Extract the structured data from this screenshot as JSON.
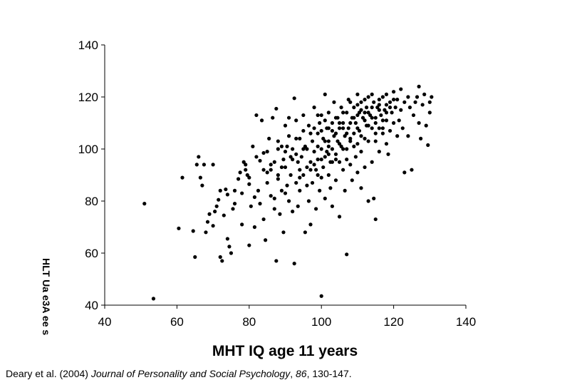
{
  "chart_data": {
    "type": "scatter",
    "title": "",
    "xlabel": "MHT IQ age 11 years",
    "ylabel_garbled": "HLT Ua e3A ee s",
    "xlim": [
      40,
      140
    ],
    "ylim": [
      40,
      140
    ],
    "x_ticks": [
      "40",
      "60",
      "80",
      "100",
      "120",
      "140"
    ],
    "y_ticks": [
      "40",
      "60",
      "80",
      "100",
      "120",
      "140"
    ],
    "grid": false,
    "legend": "none",
    "marker_color": "#000000",
    "points": [
      [
        51,
        79
      ],
      [
        53.5,
        42.5
      ],
      [
        60.5,
        69.5
      ],
      [
        61.5,
        89
      ],
      [
        64.5,
        68.5
      ],
      [
        65,
        58.5
      ],
      [
        65.5,
        94
      ],
      [
        66,
        97
      ],
      [
        66.5,
        89
      ],
      [
        67,
        86
      ],
      [
        67.5,
        94
      ],
      [
        68,
        68
      ],
      [
        68.5,
        72
      ],
      [
        69,
        75
      ],
      [
        70,
        94
      ],
      [
        70,
        70.5
      ],
      [
        70.5,
        76
      ],
      [
        71,
        78
      ],
      [
        71.5,
        80.5
      ],
      [
        72,
        58.5
      ],
      [
        72.5,
        57
      ],
      [
        73,
        74.5
      ],
      [
        73.5,
        84.5
      ],
      [
        74,
        82.5
      ],
      [
        74,
        65.5
      ],
      [
        74.5,
        62.5
      ],
      [
        75,
        60
      ],
      [
        75.5,
        77
      ],
      [
        76,
        84
      ],
      [
        77,
        88.5
      ],
      [
        77.5,
        91
      ],
      [
        78,
        71
      ],
      [
        78.5,
        95
      ],
      [
        79,
        94
      ],
      [
        79.5,
        90
      ],
      [
        80,
        86.5
      ],
      [
        80,
        63
      ],
      [
        80.5,
        78
      ],
      [
        81,
        101
      ],
      [
        81.5,
        81.5
      ],
      [
        81.5,
        70
      ],
      [
        82,
        113
      ],
      [
        82.5,
        84
      ],
      [
        83,
        95.5
      ],
      [
        83,
        79
      ],
      [
        83.5,
        111
      ],
      [
        84,
        98.5
      ],
      [
        84,
        73
      ],
      [
        84.5,
        65
      ],
      [
        85,
        91
      ],
      [
        85,
        87
      ],
      [
        85.5,
        104
      ],
      [
        86,
        92
      ],
      [
        86,
        82
      ],
      [
        86.5,
        112
      ],
      [
        87,
        95
      ],
      [
        87,
        77
      ],
      [
        87.5,
        57
      ],
      [
        87.5,
        115.5
      ],
      [
        88,
        100
      ],
      [
        88,
        88.5
      ],
      [
        88.5,
        75
      ],
      [
        89,
        101
      ],
      [
        89,
        84
      ],
      [
        89.5,
        96
      ],
      [
        89.5,
        68
      ],
      [
        90,
        109
      ],
      [
        90,
        93
      ],
      [
        90.5,
        101
      ],
      [
        90.5,
        86
      ],
      [
        91,
        80
      ],
      [
        91,
        112
      ],
      [
        91.5,
        97
      ],
      [
        91.5,
        90
      ],
      [
        92,
        100
      ],
      [
        92,
        76
      ],
      [
        92.5,
        119.5
      ],
      [
        92.5,
        56
      ],
      [
        93,
        87
      ],
      [
        93,
        111
      ],
      [
        93.5,
        95
      ],
      [
        93.5,
        78
      ],
      [
        94,
        104
      ],
      [
        94,
        84
      ],
      [
        94.5,
        97
      ],
      [
        95,
        90
      ],
      [
        95,
        113
      ],
      [
        95.5,
        68
      ],
      [
        95.5,
        101
      ],
      [
        96,
        93
      ],
      [
        96.5,
        109
      ],
      [
        96.5,
        80
      ],
      [
        97,
        95
      ],
      [
        97,
        71
      ],
      [
        97.5,
        103
      ],
      [
        97.5,
        87
      ],
      [
        98,
        116
      ],
      [
        98,
        99
      ],
      [
        98.5,
        92
      ],
      [
        98.5,
        77
      ],
      [
        99,
        106
      ],
      [
        99,
        96
      ],
      [
        99.5,
        110
      ],
      [
        99.5,
        84
      ],
      [
        100,
        113
      ],
      [
        100,
        100
      ],
      [
        100,
        89
      ],
      [
        100,
        43.5
      ],
      [
        100.5,
        104
      ],
      [
        100.5,
        93
      ],
      [
        101,
        121
      ],
      [
        101,
        97
      ],
      [
        101,
        81
      ],
      [
        101.5,
        108
      ],
      [
        101.5,
        99
      ],
      [
        102,
        114
      ],
      [
        102,
        103
      ],
      [
        102,
        90
      ],
      [
        102.5,
        95
      ],
      [
        102.5,
        85
      ],
      [
        103,
        110
      ],
      [
        103,
        100
      ],
      [
        103,
        78
      ],
      [
        103.5,
        118
      ],
      [
        103.5,
        105
      ],
      [
        104,
        98
      ],
      [
        104,
        88
      ],
      [
        104.5,
        112
      ],
      [
        104.5,
        103
      ],
      [
        105,
        108
      ],
      [
        105,
        95
      ],
      [
        105,
        74
      ],
      [
        105.5,
        116
      ],
      [
        105.5,
        101
      ],
      [
        106,
        110
      ],
      [
        106,
        92
      ],
      [
        106.5,
        105
      ],
      [
        106.5,
        84
      ],
      [
        107,
        114
      ],
      [
        107,
        100
      ],
      [
        107,
        59.5
      ],
      [
        107.5,
        119
      ],
      [
        107.5,
        108
      ],
      [
        108,
        103
      ],
      [
        108,
        94
      ],
      [
        108.5,
        112
      ],
      [
        108.5,
        88
      ],
      [
        109,
        116
      ],
      [
        109,
        106
      ],
      [
        109.5,
        110
      ],
      [
        109.5,
        97
      ],
      [
        110,
        121
      ],
      [
        110,
        102
      ],
      [
        110,
        91
      ],
      [
        110.5,
        114
      ],
      [
        110.5,
        107
      ],
      [
        111,
        118
      ],
      [
        111,
        99
      ],
      [
        111,
        85
      ],
      [
        111.5,
        112
      ],
      [
        112,
        104
      ],
      [
        112,
        93
      ],
      [
        112.5,
        116
      ],
      [
        112.5,
        109
      ],
      [
        113,
        120
      ],
      [
        113,
        103
      ],
      [
        113,
        80
      ],
      [
        113.5,
        113
      ],
      [
        114,
        108
      ],
      [
        114,
        95
      ],
      [
        114.5,
        118
      ],
      [
        114.5,
        81
      ],
      [
        115,
        112
      ],
      [
        115,
        103
      ],
      [
        115,
        73
      ],
      [
        115.5,
        116
      ],
      [
        116,
        108
      ],
      [
        116,
        99
      ],
      [
        116.5,
        113
      ],
      [
        117,
        120
      ],
      [
        117,
        106
      ],
      [
        117.5,
        115
      ],
      [
        118,
        102
      ],
      [
        118,
        111
      ],
      [
        118.5,
        98
      ],
      [
        119,
        118
      ],
      [
        119,
        107
      ],
      [
        119.5,
        114
      ],
      [
        120,
        110
      ],
      [
        120,
        122
      ],
      [
        120.5,
        116
      ],
      [
        121,
        105
      ],
      [
        121,
        119
      ],
      [
        121.5,
        111
      ],
      [
        122,
        123
      ],
      [
        122,
        115
      ],
      [
        122.5,
        108
      ],
      [
        123,
        118
      ],
      [
        123,
        91
      ],
      [
        124,
        105
      ],
      [
        124,
        120
      ],
      [
        124.5,
        116
      ],
      [
        125,
        92
      ],
      [
        125.5,
        113
      ],
      [
        126,
        118
      ],
      [
        126.5,
        120
      ],
      [
        127,
        124
      ],
      [
        127,
        110
      ],
      [
        127.5,
        104
      ],
      [
        128,
        117
      ],
      [
        128.5,
        121
      ],
      [
        129,
        109
      ],
      [
        129.5,
        101.5
      ],
      [
        130,
        114
      ],
      [
        130,
        118
      ],
      [
        130.5,
        120
      ],
      [
        72,
        84
      ],
      [
        76,
        79
      ],
      [
        79,
        92
      ],
      [
        82,
        97
      ],
      [
        85,
        99
      ],
      [
        88,
        90
      ],
      [
        90,
        99
      ],
      [
        93,
        104
      ],
      [
        95,
        100
      ],
      [
        97,
        92
      ],
      [
        99,
        101
      ],
      [
        101,
        103
      ],
      [
        103,
        95
      ],
      [
        105,
        102
      ],
      [
        107,
        96
      ],
      [
        109,
        101
      ],
      [
        111,
        105
      ],
      [
        113,
        109
      ],
      [
        115,
        106
      ],
      [
        117,
        111
      ],
      [
        119,
        116
      ],
      [
        96,
        100
      ],
      [
        98,
        108
      ],
      [
        100,
        96
      ],
      [
        102,
        108
      ],
      [
        104,
        112
      ],
      [
        106,
        114
      ],
      [
        108,
        118
      ],
      [
        110,
        113
      ],
      [
        112,
        111
      ],
      [
        114,
        116
      ],
      [
        116,
        119
      ],
      [
        118,
        121
      ],
      [
        86,
        94
      ],
      [
        89,
        93
      ],
      [
        92,
        96
      ],
      [
        94,
        89
      ],
      [
        96,
        86
      ],
      [
        99,
        90
      ],
      [
        102,
        98
      ],
      [
        104,
        96
      ],
      [
        106,
        100
      ],
      [
        108,
        104
      ],
      [
        110,
        108
      ],
      [
        112,
        119
      ],
      [
        114,
        121
      ],
      [
        116,
        117
      ],
      [
        118,
        114
      ],
      [
        91,
        105
      ],
      [
        93,
        98
      ],
      [
        95,
        107
      ],
      [
        97,
        106
      ],
      [
        99,
        113
      ],
      [
        101,
        111
      ],
      [
        103,
        107
      ],
      [
        105,
        110
      ],
      [
        107,
        106
      ],
      [
        109,
        112
      ],
      [
        111,
        115
      ],
      [
        113,
        114
      ],
      [
        115,
        110
      ],
      [
        117,
        108
      ],
      [
        88,
        103
      ],
      [
        84,
        92
      ],
      [
        80,
        89
      ],
      [
        78,
        83
      ],
      [
        87,
        81
      ],
      [
        90,
        83
      ],
      [
        94,
        92
      ],
      [
        98,
        94
      ],
      [
        100,
        107
      ],
      [
        102,
        101
      ],
      [
        104,
        106
      ],
      [
        106,
        108
      ],
      [
        108,
        110
      ],
      [
        110,
        117
      ],
      [
        112,
        114
      ],
      [
        114,
        112
      ],
      [
        116,
        115
      ],
      [
        118,
        117
      ],
      [
        120,
        119
      ]
    ]
  },
  "citation": {
    "authors": "Deary et al. (2004) ",
    "journal": "Journal of Personality and Social Psychology",
    "volume_sep": ", ",
    "volume": "86",
    "pages": ", 130-147."
  }
}
